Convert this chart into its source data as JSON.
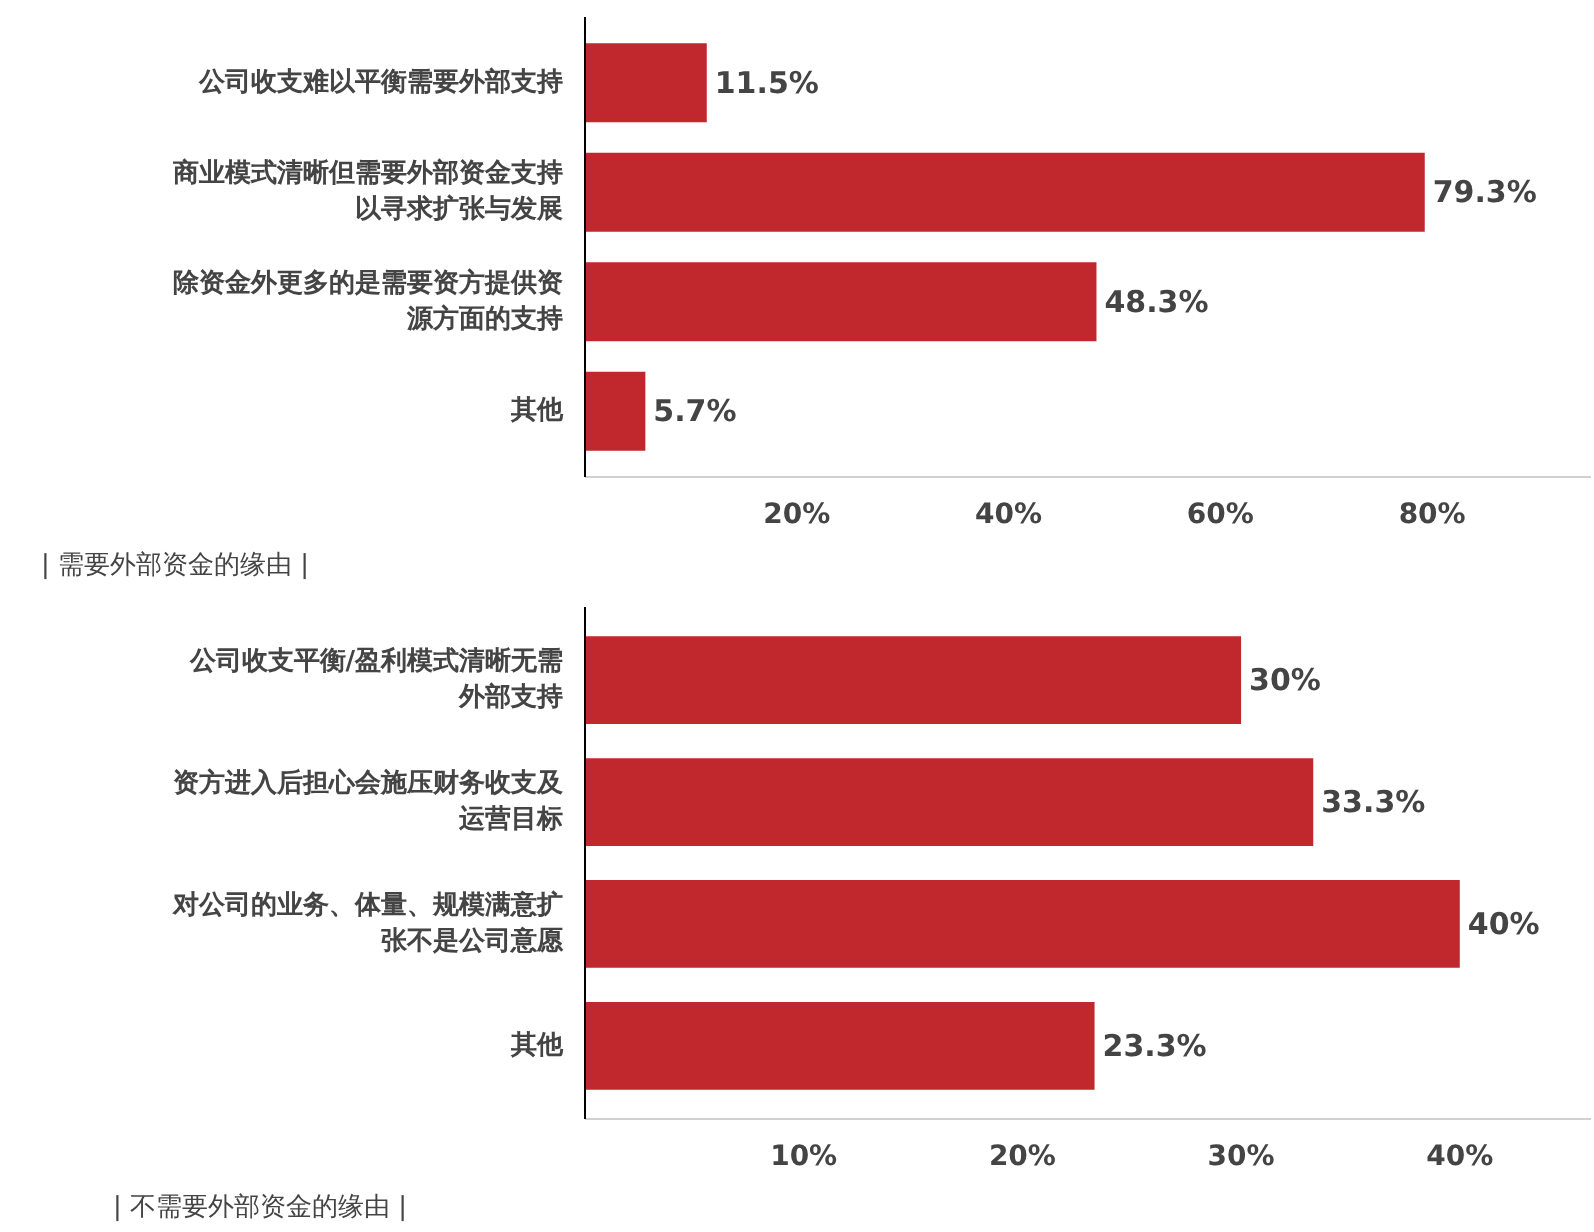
{
  "chart_data": [
    {
      "type": "bar",
      "orientation": "horizontal",
      "categories": [
        "公司收支难以平衡需要外部支持",
        "商业模式清晰但需要外部资金支持以寻求扩张与发展",
        "除资金外更多的是需要资方提供资源方面的支持",
        "其他"
      ],
      "values": [
        11.5,
        79.3,
        48.3,
        5.7
      ],
      "value_labels": [
        "11.5%",
        "79.3%",
        "48.3%",
        "5.7%"
      ],
      "color": "#c0282d",
      "xlim": [
        0,
        95
      ],
      "xticks": [
        {
          "value": 20,
          "label": "20%"
        },
        {
          "value": 40,
          "label": "40%"
        },
        {
          "value": 60,
          "label": "60%"
        },
        {
          "value": 80,
          "label": "80%"
        }
      ],
      "grid": false,
      "annotations": [
        "| 需要外部资金的缘由 |"
      ]
    },
    {
      "type": "bar",
      "orientation": "horizontal",
      "categories": [
        "公司收支平衡/盈利模式清晰无需外部支持",
        "资方进入后担心会施压财务收支及运营目标",
        "对公司的业务、体量、规模满意扩张不是公司意愿",
        "其他"
      ],
      "values": [
        30,
        33.3,
        40,
        23.3
      ],
      "value_labels": [
        "30%",
        "33.3%",
        "40%",
        "23.3%"
      ],
      "color": "#c0282d",
      "xlim": [
        0,
        46
      ],
      "xticks": [
        {
          "value": 10,
          "label": "10%"
        },
        {
          "value": 20,
          "label": "20%"
        },
        {
          "value": 30,
          "label": "30%"
        },
        {
          "value": 40,
          "label": "40%"
        }
      ],
      "grid": false,
      "annotations": [
        "| 不需要外部资金的缘由 |"
      ]
    }
  ]
}
